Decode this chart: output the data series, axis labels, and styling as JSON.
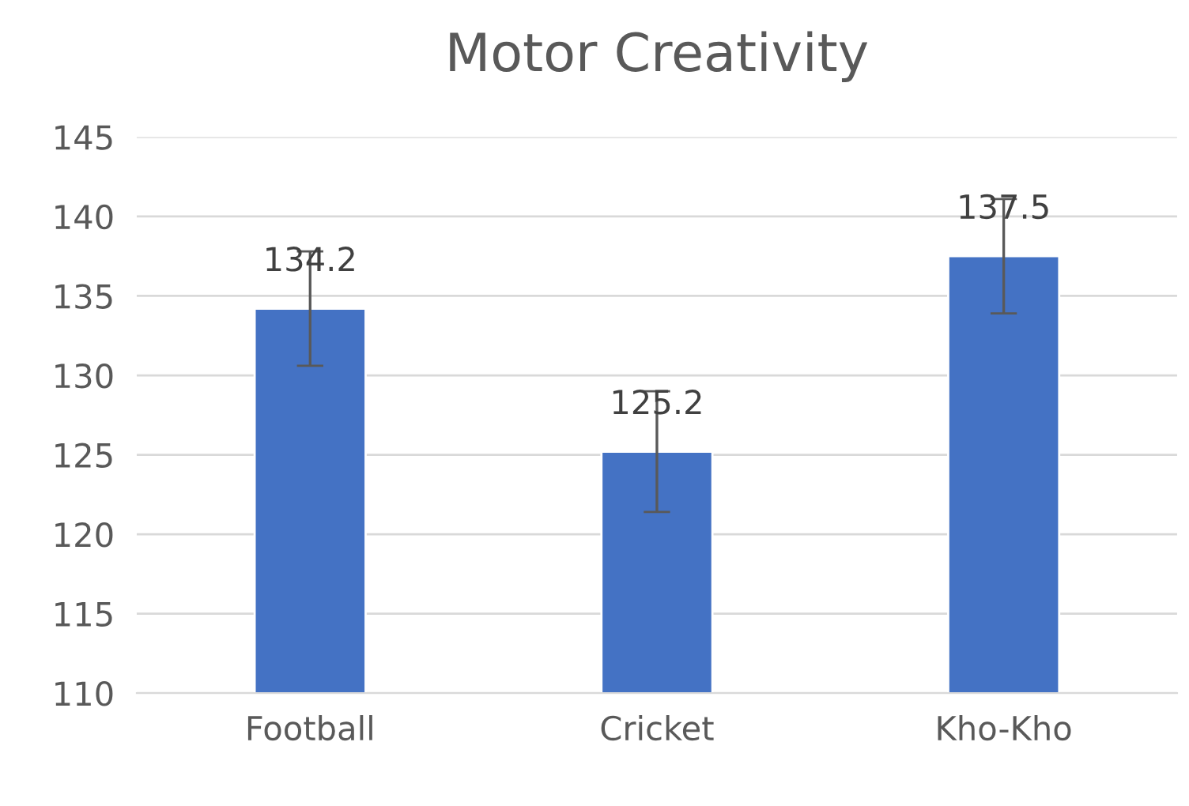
{
  "chart_data": {
    "type": "bar",
    "title": "Motor Creativity",
    "categories": [
      "Football",
      "Cricket",
      "Kho-Kho"
    ],
    "values": [
      134.2,
      125.2,
      137.5
    ],
    "errors": [
      3.6,
      3.8,
      3.6
    ],
    "color": "#4472c4",
    "ylim": [
      110,
      145
    ],
    "yticks": [
      110,
      115,
      120,
      125,
      130,
      135,
      140,
      145
    ],
    "grid": "y",
    "data_labels": true
  }
}
